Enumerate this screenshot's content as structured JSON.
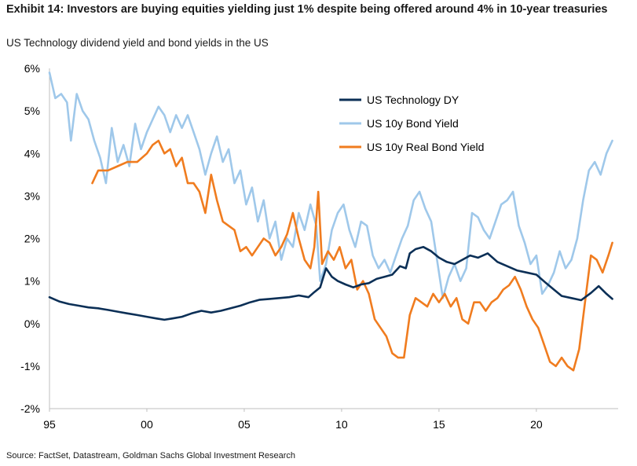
{
  "header": {
    "title": "Exhibit 14: Investors are buying equities yielding just 1% despite being offered around 4% in 10-year treasuries",
    "subtitle": "US Technology dividend yield and bond yields in the US"
  },
  "footer": {
    "source": "Source: FactSet, Datastream, Goldman Sachs Global Investment Research"
  },
  "chart_data": {
    "type": "line",
    "title": "Exhibit 14: Investors are buying equities yielding just 1% despite being offered around 4% in 10-year treasuries",
    "subtitle": "US Technology dividend yield and bond yields in the US",
    "xlabel": "",
    "ylabel": "",
    "xlim": [
      1995,
      2024.2
    ],
    "ylim": [
      -2,
      6
    ],
    "x_ticks": [
      1995,
      2000,
      2005,
      2010,
      2015,
      2020
    ],
    "x_tick_labels": [
      "95",
      "00",
      "05",
      "10",
      "15",
      "20"
    ],
    "y_ticks": [
      -2,
      -1,
      0,
      1,
      2,
      3,
      4,
      5,
      6
    ],
    "y_tick_labels": [
      "-2%",
      "-1%",
      "0%",
      "1%",
      "2%",
      "3%",
      "4%",
      "5%",
      "6%"
    ],
    "grid": false,
    "legend_position": "top-right",
    "series": [
      {
        "name": "US Technology DY",
        "color": "#0b2f56",
        "points": [
          [
            1995.0,
            0.62
          ],
          [
            1995.5,
            0.52
          ],
          [
            1996.0,
            0.46
          ],
          [
            1996.5,
            0.42
          ],
          [
            1997.0,
            0.38
          ],
          [
            1997.5,
            0.36
          ],
          [
            1998.0,
            0.32
          ],
          [
            1998.5,
            0.28
          ],
          [
            1999.0,
            0.24
          ],
          [
            1999.5,
            0.2
          ],
          [
            2000.0,
            0.16
          ],
          [
            2000.5,
            0.12
          ],
          [
            2000.9,
            0.09
          ],
          [
            2001.3,
            0.12
          ],
          [
            2001.8,
            0.16
          ],
          [
            2002.3,
            0.24
          ],
          [
            2002.8,
            0.3
          ],
          [
            2003.3,
            0.26
          ],
          [
            2003.8,
            0.3
          ],
          [
            2004.3,
            0.36
          ],
          [
            2004.8,
            0.42
          ],
          [
            2005.3,
            0.5
          ],
          [
            2005.8,
            0.56
          ],
          [
            2006.3,
            0.58
          ],
          [
            2006.8,
            0.6
          ],
          [
            2007.3,
            0.62
          ],
          [
            2007.8,
            0.66
          ],
          [
            2008.3,
            0.62
          ],
          [
            2008.6,
            0.74
          ],
          [
            2008.9,
            0.85
          ],
          [
            2009.2,
            1.3
          ],
          [
            2009.5,
            1.1
          ],
          [
            2009.8,
            1.0
          ],
          [
            2010.2,
            0.92
          ],
          [
            2010.6,
            0.85
          ],
          [
            2011.0,
            0.92
          ],
          [
            2011.4,
            0.95
          ],
          [
            2011.8,
            1.05
          ],
          [
            2012.2,
            1.1
          ],
          [
            2012.6,
            1.15
          ],
          [
            2013.0,
            1.35
          ],
          [
            2013.3,
            1.3
          ],
          [
            2013.5,
            1.65
          ],
          [
            2013.8,
            1.75
          ],
          [
            2014.2,
            1.8
          ],
          [
            2014.6,
            1.7
          ],
          [
            2015.0,
            1.55
          ],
          [
            2015.4,
            1.45
          ],
          [
            2015.8,
            1.4
          ],
          [
            2016.2,
            1.5
          ],
          [
            2016.6,
            1.6
          ],
          [
            2017.0,
            1.55
          ],
          [
            2017.5,
            1.65
          ],
          [
            2018.0,
            1.45
          ],
          [
            2018.5,
            1.35
          ],
          [
            2019.0,
            1.25
          ],
          [
            2019.5,
            1.2
          ],
          [
            2020.0,
            1.15
          ],
          [
            2020.5,
            0.95
          ],
          [
            2020.9,
            0.8
          ],
          [
            2021.3,
            0.65
          ],
          [
            2021.8,
            0.6
          ],
          [
            2022.3,
            0.55
          ],
          [
            2022.8,
            0.72
          ],
          [
            2023.2,
            0.88
          ],
          [
            2023.6,
            0.7
          ],
          [
            2023.9,
            0.58
          ]
        ]
      },
      {
        "name": "US 10y Bond Yield",
        "color": "#9fc8ea",
        "points": [
          [
            1995.0,
            5.9
          ],
          [
            1995.3,
            5.3
          ],
          [
            1995.6,
            5.4
          ],
          [
            1995.9,
            5.2
          ],
          [
            1996.1,
            4.3
          ],
          [
            1996.4,
            5.4
          ],
          [
            1996.7,
            5.0
          ],
          [
            1997.0,
            4.8
          ],
          [
            1997.3,
            4.3
          ],
          [
            1997.6,
            3.9
          ],
          [
            1997.9,
            3.3
          ],
          [
            1998.2,
            4.6
          ],
          [
            1998.5,
            3.8
          ],
          [
            1998.8,
            4.2
          ],
          [
            1999.1,
            3.7
          ],
          [
            1999.4,
            4.7
          ],
          [
            1999.7,
            4.1
          ],
          [
            2000.0,
            4.5
          ],
          [
            2000.3,
            4.8
          ],
          [
            2000.6,
            5.1
          ],
          [
            2000.9,
            4.9
          ],
          [
            2001.2,
            4.5
          ],
          [
            2001.5,
            4.9
          ],
          [
            2001.8,
            4.6
          ],
          [
            2002.1,
            4.9
          ],
          [
            2002.4,
            4.5
          ],
          [
            2002.7,
            4.1
          ],
          [
            2003.0,
            3.5
          ],
          [
            2003.3,
            4.0
          ],
          [
            2003.6,
            4.4
          ],
          [
            2003.9,
            3.8
          ],
          [
            2004.2,
            4.1
          ],
          [
            2004.5,
            3.3
          ],
          [
            2004.8,
            3.6
          ],
          [
            2005.1,
            2.8
          ],
          [
            2005.4,
            3.2
          ],
          [
            2005.7,
            2.4
          ],
          [
            2006.0,
            2.9
          ],
          [
            2006.3,
            2.0
          ],
          [
            2006.6,
            2.4
          ],
          [
            2006.9,
            1.5
          ],
          [
            2007.2,
            2.0
          ],
          [
            2007.5,
            1.8
          ],
          [
            2007.8,
            2.6
          ],
          [
            2008.1,
            2.2
          ],
          [
            2008.4,
            2.8
          ],
          [
            2008.7,
            2.3
          ],
          [
            2008.9,
            1.0
          ],
          [
            2009.2,
            1.4
          ],
          [
            2009.5,
            2.2
          ],
          [
            2009.8,
            2.6
          ],
          [
            2010.1,
            2.8
          ],
          [
            2010.4,
            2.2
          ],
          [
            2010.7,
            1.8
          ],
          [
            2011.0,
            2.4
          ],
          [
            2011.3,
            2.3
          ],
          [
            2011.6,
            1.6
          ],
          [
            2011.9,
            1.3
          ],
          [
            2012.2,
            1.5
          ],
          [
            2012.5,
            1.2
          ],
          [
            2012.8,
            1.6
          ],
          [
            2013.1,
            2.0
          ],
          [
            2013.4,
            2.3
          ],
          [
            2013.7,
            2.9
          ],
          [
            2014.0,
            3.1
          ],
          [
            2014.3,
            2.7
          ],
          [
            2014.6,
            2.4
          ],
          [
            2014.9,
            1.5
          ],
          [
            2015.2,
            0.6
          ],
          [
            2015.5,
            1.1
          ],
          [
            2015.8,
            1.4
          ],
          [
            2016.1,
            1.0
          ],
          [
            2016.4,
            1.3
          ],
          [
            2016.7,
            2.6
          ],
          [
            2017.0,
            2.5
          ],
          [
            2017.3,
            2.2
          ],
          [
            2017.6,
            2.0
          ],
          [
            2017.9,
            2.4
          ],
          [
            2018.2,
            2.8
          ],
          [
            2018.5,
            2.9
          ],
          [
            2018.8,
            3.1
          ],
          [
            2019.1,
            2.3
          ],
          [
            2019.4,
            1.9
          ],
          [
            2019.7,
            1.4
          ],
          [
            2020.0,
            1.6
          ],
          [
            2020.3,
            0.7
          ],
          [
            2020.6,
            0.9
          ],
          [
            2020.9,
            1.2
          ],
          [
            2021.2,
            1.7
          ],
          [
            2021.5,
            1.3
          ],
          [
            2021.8,
            1.5
          ],
          [
            2022.1,
            2.0
          ],
          [
            2022.4,
            2.9
          ],
          [
            2022.7,
            3.6
          ],
          [
            2023.0,
            3.8
          ],
          [
            2023.3,
            3.5
          ],
          [
            2023.6,
            4.0
          ],
          [
            2023.9,
            4.3
          ]
        ]
      },
      {
        "name": "US 10y Real Bond Yield",
        "color": "#f07c1f",
        "points": [
          [
            1997.2,
            3.3
          ],
          [
            1997.5,
            3.6
          ],
          [
            1998.0,
            3.6
          ],
          [
            1998.5,
            3.7
          ],
          [
            1999.0,
            3.8
          ],
          [
            1999.5,
            3.8
          ],
          [
            2000.0,
            4.0
          ],
          [
            2000.3,
            4.2
          ],
          [
            2000.6,
            4.3
          ],
          [
            2000.9,
            4.0
          ],
          [
            2001.2,
            4.1
          ],
          [
            2001.5,
            3.7
          ],
          [
            2001.8,
            3.9
          ],
          [
            2002.1,
            3.3
          ],
          [
            2002.4,
            3.3
          ],
          [
            2002.7,
            3.1
          ],
          [
            2003.0,
            2.6
          ],
          [
            2003.3,
            3.5
          ],
          [
            2003.6,
            2.9
          ],
          [
            2003.9,
            2.4
          ],
          [
            2004.2,
            2.3
          ],
          [
            2004.5,
            2.2
          ],
          [
            2004.8,
            1.7
          ],
          [
            2005.1,
            1.8
          ],
          [
            2005.4,
            1.6
          ],
          [
            2005.7,
            1.8
          ],
          [
            2006.0,
            2.0
          ],
          [
            2006.3,
            1.9
          ],
          [
            2006.6,
            1.6
          ],
          [
            2006.9,
            1.8
          ],
          [
            2007.2,
            2.1
          ],
          [
            2007.5,
            2.6
          ],
          [
            2007.8,
            2.0
          ],
          [
            2008.1,
            1.5
          ],
          [
            2008.4,
            1.3
          ],
          [
            2008.6,
            1.8
          ],
          [
            2008.8,
            3.1
          ],
          [
            2009.0,
            1.4
          ],
          [
            2009.3,
            1.7
          ],
          [
            2009.6,
            1.5
          ],
          [
            2009.9,
            1.8
          ],
          [
            2010.2,
            1.3
          ],
          [
            2010.5,
            1.5
          ],
          [
            2010.8,
            0.8
          ],
          [
            2011.1,
            1.0
          ],
          [
            2011.4,
            0.7
          ],
          [
            2011.7,
            0.1
          ],
          [
            2012.0,
            -0.1
          ],
          [
            2012.3,
            -0.3
          ],
          [
            2012.6,
            -0.7
          ],
          [
            2012.9,
            -0.8
          ],
          [
            2013.2,
            -0.8
          ],
          [
            2013.5,
            0.2
          ],
          [
            2013.8,
            0.6
          ],
          [
            2014.1,
            0.5
          ],
          [
            2014.4,
            0.4
          ],
          [
            2014.7,
            0.7
          ],
          [
            2015.0,
            0.5
          ],
          [
            2015.3,
            0.7
          ],
          [
            2015.6,
            0.4
          ],
          [
            2015.9,
            0.6
          ],
          [
            2016.2,
            0.1
          ],
          [
            2016.5,
            0.0
          ],
          [
            2016.8,
            0.5
          ],
          [
            2017.1,
            0.5
          ],
          [
            2017.4,
            0.3
          ],
          [
            2017.7,
            0.5
          ],
          [
            2018.0,
            0.6
          ],
          [
            2018.3,
            0.8
          ],
          [
            2018.6,
            0.9
          ],
          [
            2018.9,
            1.1
          ],
          [
            2019.2,
            0.8
          ],
          [
            2019.5,
            0.4
          ],
          [
            2019.8,
            0.1
          ],
          [
            2020.1,
            -0.1
          ],
          [
            2020.4,
            -0.5
          ],
          [
            2020.7,
            -0.9
          ],
          [
            2021.0,
            -1.0
          ],
          [
            2021.3,
            -0.8
          ],
          [
            2021.6,
            -1.0
          ],
          [
            2021.9,
            -1.1
          ],
          [
            2022.2,
            -0.6
          ],
          [
            2022.5,
            0.5
          ],
          [
            2022.8,
            1.6
          ],
          [
            2023.1,
            1.5
          ],
          [
            2023.4,
            1.2
          ],
          [
            2023.7,
            1.6
          ],
          [
            2023.9,
            1.9
          ]
        ]
      }
    ]
  }
}
